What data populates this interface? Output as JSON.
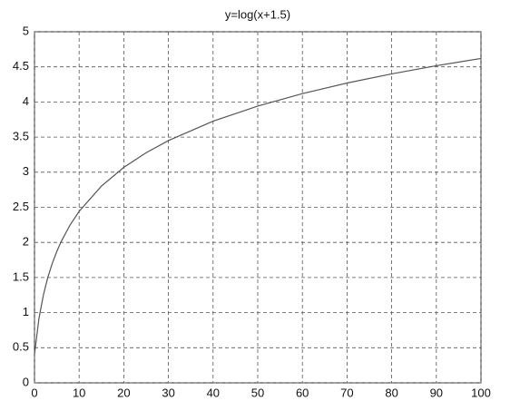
{
  "chart_data": {
    "type": "line",
    "title": "y=log(x+1.5)",
    "x": [
      0,
      1,
      2,
      3,
      4,
      5,
      6,
      8,
      10,
      15,
      20,
      25,
      30,
      40,
      50,
      60,
      70,
      80,
      90,
      100
    ],
    "series": [
      {
        "color": "#555555",
        "values": [
          0.405,
          0.916,
          1.253,
          1.504,
          1.705,
          1.872,
          2.015,
          2.251,
          2.442,
          2.803,
          3.068,
          3.277,
          3.45,
          3.726,
          3.942,
          4.119,
          4.27,
          4.4,
          4.516,
          4.62
        ]
      }
    ],
    "xlim": [
      0,
      100
    ],
    "xticks": [
      0,
      10,
      20,
      30,
      40,
      50,
      60,
      70,
      80,
      90,
      100
    ],
    "ylim": [
      0,
      5
    ],
    "yticks": [
      0,
      0.5,
      1,
      1.5,
      2,
      2.5,
      3,
      3.5,
      4,
      4.5,
      5
    ],
    "grid": true
  }
}
